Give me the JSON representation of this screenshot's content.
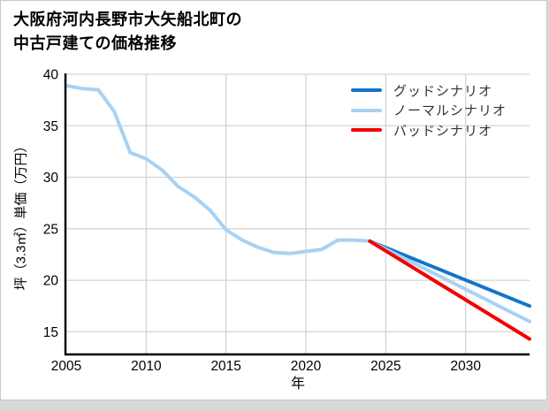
{
  "page": {
    "card_background": "#ffffff",
    "border_color": "#c9c9c9",
    "bottom_band_color": "#d9d9d9"
  },
  "header": {
    "title_line1": "大阪府河内長野市大矢船北町の",
    "title_line2": "中古戸建ての価格推移"
  },
  "chart_data": {
    "type": "line",
    "title": "大阪府河内長野市大矢船北町の中古戸建ての価格推移",
    "xlabel": "年",
    "ylabel": "坪（3.3㎡）単価（万円）",
    "xlim": [
      2005,
      2034
    ],
    "ylim": [
      12.8,
      40
    ],
    "x_ticks": [
      2005,
      2010,
      2015,
      2020,
      2025,
      2030
    ],
    "y_ticks": [
      15,
      20,
      25,
      30,
      35,
      40
    ],
    "grid": true,
    "grid_color": "#d4d4d4",
    "axis_color": "#000000",
    "tick_label_color": "#000000",
    "legend_position": "top-right",
    "series": [
      {
        "id": "history",
        "label": "",
        "in_legend": false,
        "color": "#a8d2f3",
        "x": [
          2005,
          2006,
          2007,
          2008,
          2009,
          2010,
          2011,
          2012,
          2013,
          2014,
          2015,
          2016,
          2017,
          2018,
          2019,
          2020,
          2021,
          2022,
          2023,
          2024
        ],
        "y": [
          38.9,
          38.6,
          38.5,
          36.4,
          32.4,
          31.8,
          30.7,
          29.1,
          28.1,
          26.8,
          24.9,
          23.9,
          23.2,
          22.7,
          22.6,
          22.8,
          23.0,
          23.9,
          23.9,
          23.8
        ]
      },
      {
        "id": "good",
        "label": "グッドシナリオ",
        "in_legend": true,
        "color": "#1375c8",
        "x": [
          2024,
          2034
        ],
        "y": [
          23.8,
          17.5
        ]
      },
      {
        "id": "normal",
        "label": "ノーマルシナリオ",
        "in_legend": true,
        "color": "#a8d2f3",
        "x": [
          2024,
          2034
        ],
        "y": [
          23.8,
          16.0
        ]
      },
      {
        "id": "bad",
        "label": "バッドシナリオ",
        "in_legend": true,
        "color": "#f50000",
        "x": [
          2024,
          2034
        ],
        "y": [
          23.8,
          14.3
        ]
      }
    ]
  }
}
